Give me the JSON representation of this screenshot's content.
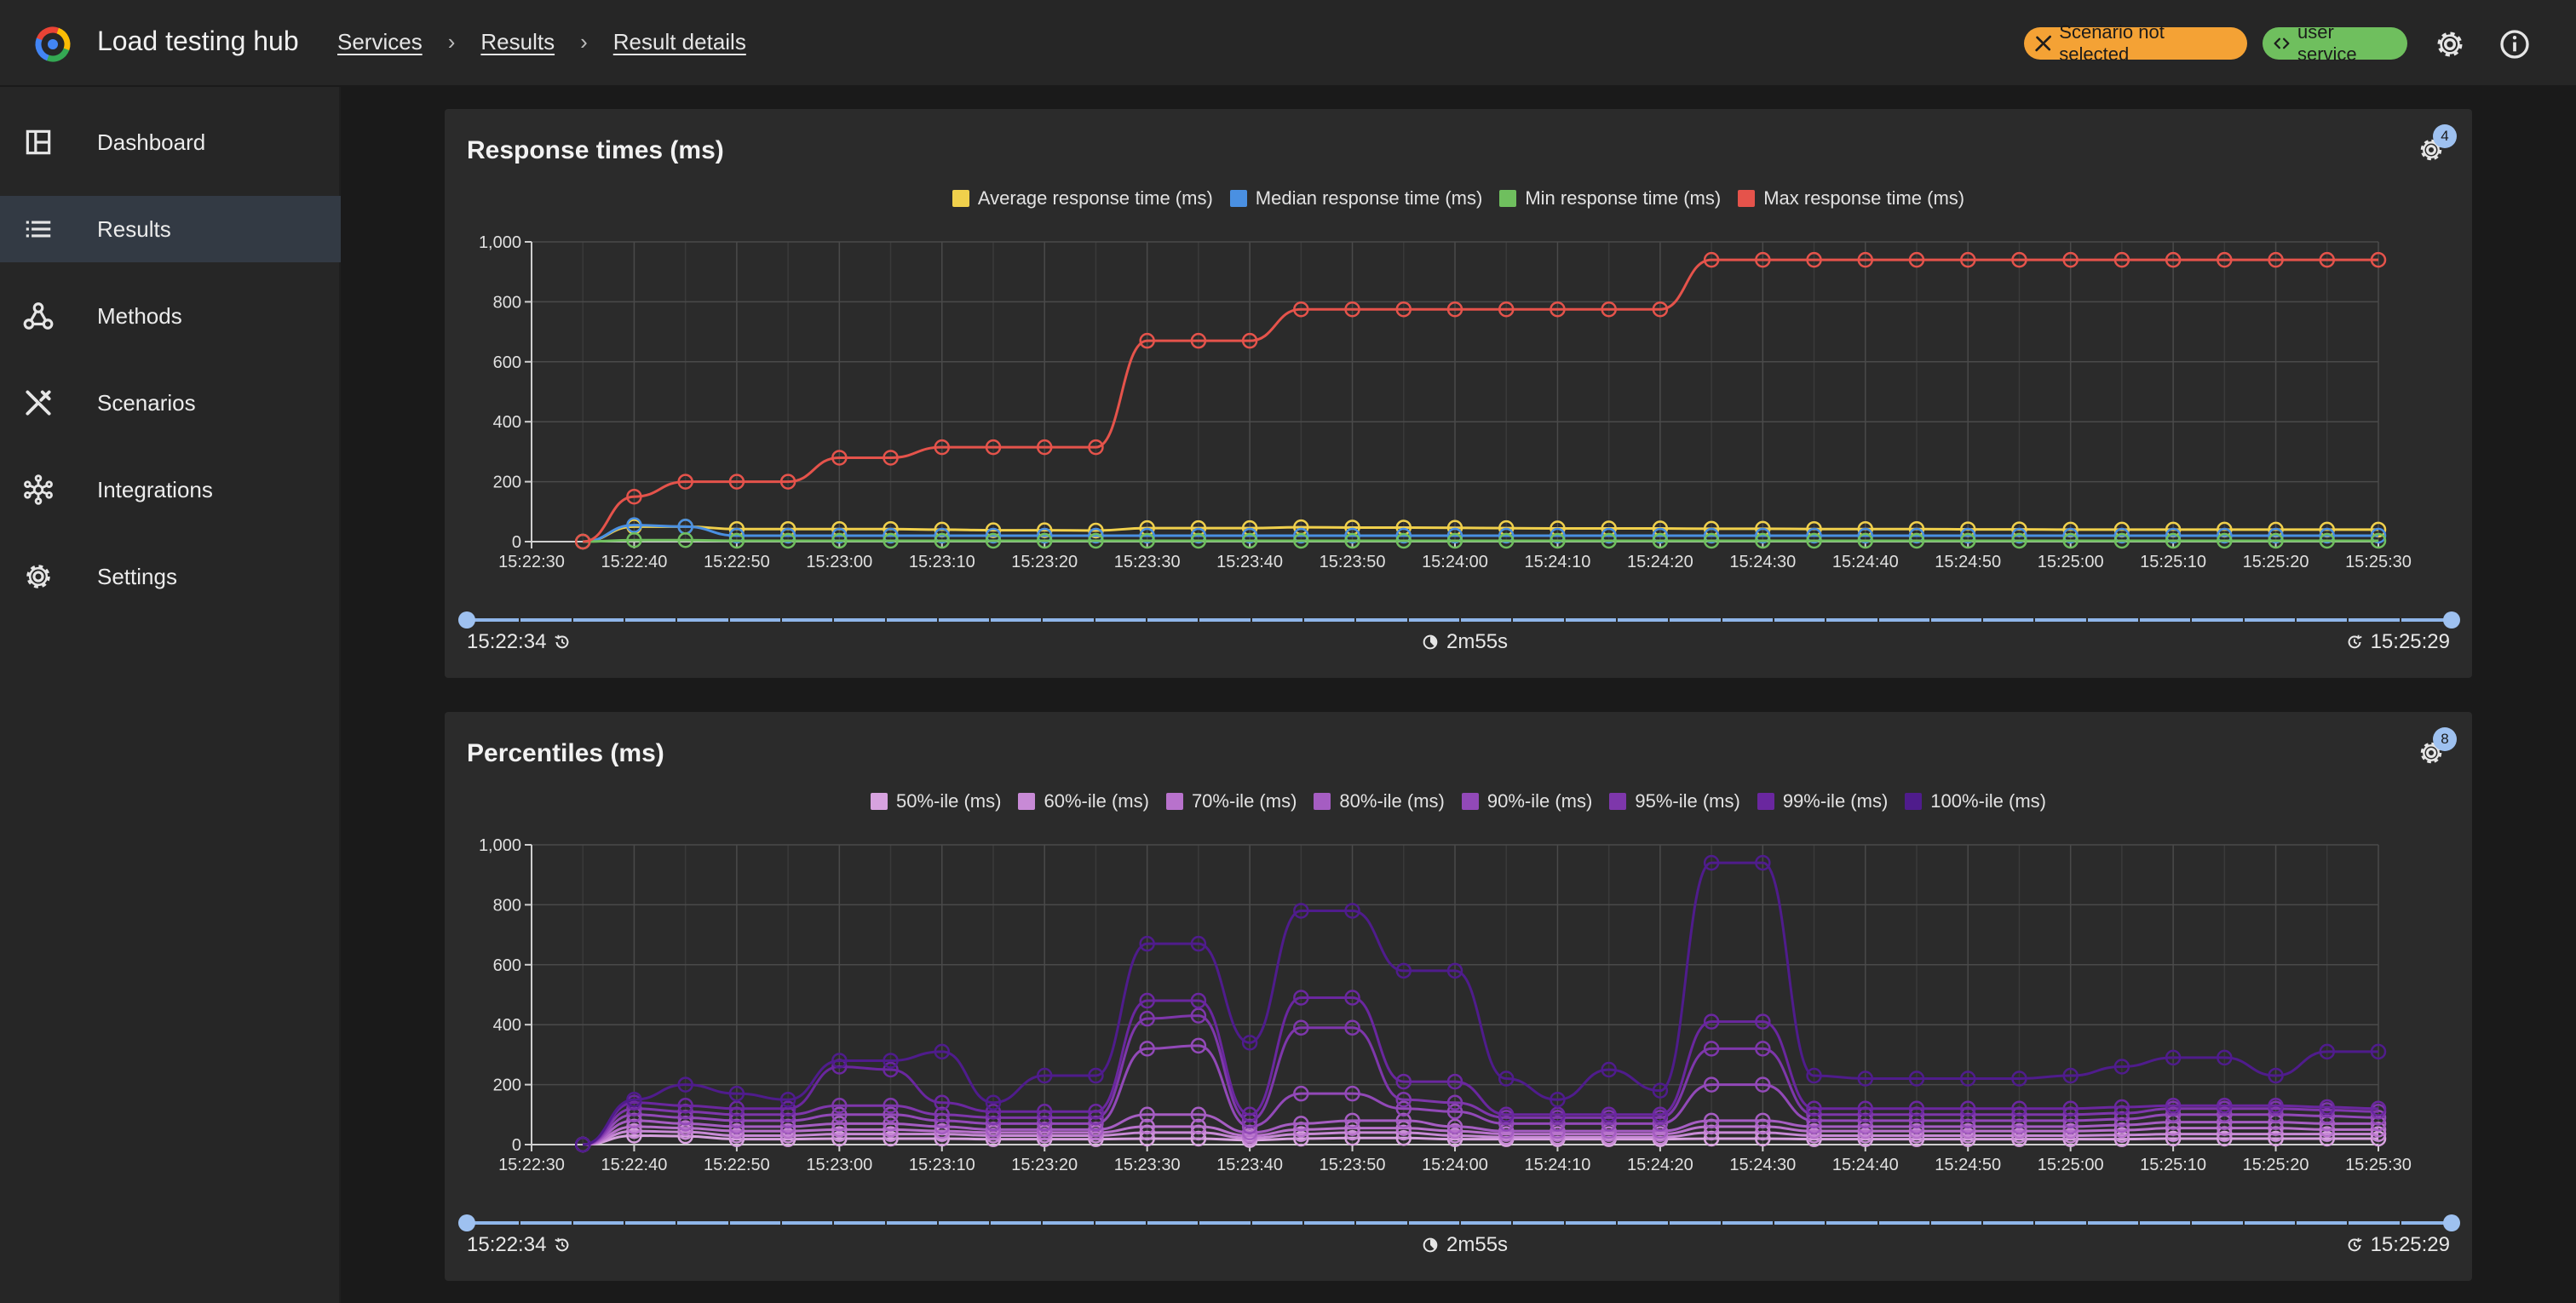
{
  "app": {
    "title": "Load testing hub"
  },
  "breadcrumbs": [
    {
      "label": "Services"
    },
    {
      "label": "Results"
    },
    {
      "label": "Result details"
    }
  ],
  "header": {
    "scenario_chip": "Scenario not selected",
    "service_chip": "user service",
    "scenario_chip_color": "#f4a235",
    "service_chip_color": "#6fbf5e",
    "icons": [
      "settings-icon",
      "info-icon"
    ]
  },
  "sidebar": {
    "items": [
      {
        "label": "Dashboard",
        "icon": "dashboard-icon",
        "active": false
      },
      {
        "label": "Results",
        "icon": "list-icon",
        "active": true
      },
      {
        "label": "Methods",
        "icon": "webhook-icon",
        "active": false
      },
      {
        "label": "Scenarios",
        "icon": "tools-icon",
        "active": false
      },
      {
        "label": "Integrations",
        "icon": "hub-icon",
        "active": false
      },
      {
        "label": "Settings",
        "icon": "gear-icon",
        "active": false
      }
    ]
  },
  "panels": [
    {
      "title": "Response times (ms)",
      "badge": "4",
      "footer": {
        "start": "15:22:34",
        "duration": "2m55s",
        "end": "15:25:29"
      }
    },
    {
      "title": "Percentiles (ms)",
      "badge": "8",
      "footer": {
        "start": "15:22:34",
        "duration": "2m55s",
        "end": "15:25:29"
      }
    }
  ],
  "chart_data": [
    {
      "type": "line",
      "title": "Response times (ms)",
      "xlabel": "",
      "ylabel": "",
      "ylim": [
        0,
        1000
      ],
      "yticks": [
        "0",
        "200",
        "400",
        "600",
        "800",
        "1,000"
      ],
      "xticks": [
        "15:22:30",
        "15:22:40",
        "15:22:50",
        "15:23:00",
        "15:23:10",
        "15:23:20",
        "15:23:30",
        "15:23:40",
        "15:23:50",
        "15:24:00",
        "15:24:10",
        "15:24:20",
        "15:24:30",
        "15:24:40",
        "15:24:50",
        "15:25:00",
        "15:25:10",
        "15:25:20",
        "15:25:30"
      ],
      "x": [
        "15:22:35",
        "15:22:40",
        "15:22:45",
        "15:22:50",
        "15:22:55",
        "15:23:00",
        "15:23:05",
        "15:23:10",
        "15:23:15",
        "15:23:20",
        "15:23:25",
        "15:23:30",
        "15:23:35",
        "15:23:40",
        "15:23:45",
        "15:23:50",
        "15:23:55",
        "15:24:00",
        "15:24:05",
        "15:24:10",
        "15:24:15",
        "15:24:20",
        "15:24:25",
        "15:24:30",
        "15:24:35",
        "15:24:40",
        "15:24:45",
        "15:24:50",
        "15:24:55",
        "15:25:00",
        "15:25:05",
        "15:25:10",
        "15:25:15",
        "15:25:20",
        "15:25:25",
        "15:25:30"
      ],
      "grid": true,
      "legend": "top-center",
      "series": [
        {
          "name": "Average response time (ms)",
          "color": "#f0d04c",
          "values": [
            0,
            50,
            50,
            42,
            42,
            42,
            42,
            40,
            38,
            38,
            37,
            45,
            45,
            45,
            48,
            47,
            47,
            46,
            45,
            44,
            44,
            44,
            43,
            43,
            42,
            42,
            42,
            41,
            41,
            40,
            40,
            40,
            40,
            40,
            40,
            40
          ]
        },
        {
          "name": "Median response time (ms)",
          "color": "#4a90e2",
          "values": [
            0,
            55,
            50,
            20,
            20,
            20,
            20,
            20,
            20,
            20,
            20,
            20,
            20,
            20,
            20,
            20,
            20,
            20,
            20,
            20,
            20,
            20,
            20,
            20,
            20,
            20,
            20,
            20,
            20,
            20,
            20,
            20,
            20,
            20,
            20,
            20
          ]
        },
        {
          "name": "Min response time (ms)",
          "color": "#6fbf5e",
          "values": [
            0,
            5,
            5,
            3,
            3,
            3,
            3,
            3,
            3,
            3,
            3,
            3,
            3,
            3,
            3,
            3,
            3,
            3,
            3,
            3,
            3,
            3,
            3,
            3,
            3,
            3,
            3,
            3,
            3,
            3,
            3,
            3,
            3,
            3,
            3,
            3
          ]
        },
        {
          "name": "Max response time (ms)",
          "color": "#e5534b",
          "values": [
            0,
            150,
            200,
            200,
            200,
            280,
            280,
            315,
            315,
            315,
            315,
            670,
            670,
            670,
            775,
            775,
            775,
            775,
            775,
            775,
            775,
            775,
            940,
            940,
            940,
            940,
            940,
            940,
            940,
            940,
            940,
            940,
            940,
            940,
            940,
            940
          ]
        }
      ]
    },
    {
      "type": "line",
      "title": "Percentiles (ms)",
      "xlabel": "",
      "ylabel": "",
      "ylim": [
        0,
        1000
      ],
      "yticks": [
        "0",
        "200",
        "400",
        "600",
        "800",
        "1,000"
      ],
      "xticks": [
        "15:22:30",
        "15:22:40",
        "15:22:50",
        "15:23:00",
        "15:23:10",
        "15:23:20",
        "15:23:30",
        "15:23:40",
        "15:23:50",
        "15:24:00",
        "15:24:10",
        "15:24:20",
        "15:24:30",
        "15:24:40",
        "15:24:50",
        "15:25:00",
        "15:25:10",
        "15:25:20",
        "15:25:30"
      ],
      "x": [
        "15:22:35",
        "15:22:40",
        "15:22:45",
        "15:22:50",
        "15:22:55",
        "15:23:00",
        "15:23:05",
        "15:23:10",
        "15:23:15",
        "15:23:20",
        "15:23:25",
        "15:23:30",
        "15:23:35",
        "15:23:40",
        "15:23:45",
        "15:23:50",
        "15:23:55",
        "15:24:00",
        "15:24:05",
        "15:24:10",
        "15:24:15",
        "15:24:20",
        "15:24:25",
        "15:24:30",
        "15:24:35",
        "15:24:40",
        "15:24:45",
        "15:24:50",
        "15:24:55",
        "15:25:00",
        "15:25:05",
        "15:25:10",
        "15:25:15",
        "15:25:20",
        "15:25:25",
        "15:25:30"
      ],
      "grid": true,
      "legend": "top-center",
      "series": [
        {
          "name": "50%-ile (ms)",
          "color": "#d7a2df",
          "values": [
            0,
            30,
            28,
            18,
            18,
            20,
            20,
            20,
            18,
            18,
            18,
            20,
            20,
            15,
            20,
            22,
            22,
            18,
            18,
            18,
            18,
            18,
            20,
            20,
            18,
            18,
            18,
            18,
            18,
            18,
            18,
            20,
            20,
            20,
            20,
            20
          ]
        },
        {
          "name": "60%-ile (ms)",
          "color": "#c88ad6",
          "values": [
            0,
            45,
            42,
            30,
            30,
            35,
            35,
            35,
            30,
            30,
            30,
            40,
            40,
            22,
            35,
            40,
            40,
            30,
            25,
            25,
            25,
            25,
            40,
            40,
            30,
            30,
            30,
            30,
            30,
            30,
            32,
            35,
            35,
            35,
            35,
            35
          ]
        },
        {
          "name": "70%-ile (ms)",
          "color": "#b872cc",
          "values": [
            0,
            60,
            55,
            45,
            45,
            50,
            50,
            45,
            40,
            40,
            40,
            60,
            60,
            30,
            50,
            55,
            55,
            45,
            35,
            35,
            35,
            35,
            60,
            60,
            45,
            45,
            45,
            45,
            45,
            45,
            48,
            55,
            55,
            55,
            50,
            50
          ]
        },
        {
          "name": "80%-ile (ms)",
          "color": "#a55dc2",
          "values": [
            0,
            80,
            70,
            60,
            60,
            70,
            70,
            60,
            50,
            50,
            50,
            100,
            100,
            40,
            70,
            80,
            80,
            60,
            45,
            45,
            45,
            45,
            80,
            80,
            60,
            60,
            60,
            60,
            60,
            60,
            65,
            75,
            75,
            75,
            70,
            70
          ]
        },
        {
          "name": "90%-ile (ms)",
          "color": "#9249b8",
          "values": [
            0,
            100,
            90,
            80,
            80,
            100,
            100,
            80,
            70,
            70,
            70,
            320,
            330,
            60,
            170,
            170,
            120,
            110,
            70,
            70,
            70,
            70,
            200,
            200,
            80,
            80,
            80,
            80,
            80,
            80,
            85,
            100,
            100,
            100,
            95,
            90
          ]
        },
        {
          "name": "95%-ile (ms)",
          "color": "#7e37ab",
          "values": [
            0,
            120,
            110,
            100,
            100,
            130,
            130,
            100,
            90,
            90,
            90,
            420,
            430,
            80,
            390,
            390,
            150,
            140,
            90,
            90,
            90,
            90,
            320,
            320,
            100,
            100,
            100,
            100,
            100,
            100,
            105,
            120,
            120,
            120,
            115,
            110
          ]
        },
        {
          "name": "99%-ile (ms)",
          "color": "#6a279f",
          "values": [
            0,
            140,
            130,
            120,
            120,
            260,
            250,
            140,
            110,
            110,
            110,
            480,
            480,
            100,
            490,
            490,
            210,
            210,
            100,
            100,
            100,
            100,
            410,
            410,
            120,
            120,
            120,
            120,
            120,
            120,
            125,
            130,
            130,
            130,
            125,
            120
          ]
        },
        {
          "name": "100%-ile (ms)",
          "color": "#4f1c8c",
          "values": [
            0,
            150,
            200,
            170,
            150,
            280,
            280,
            310,
            140,
            230,
            230,
            670,
            670,
            340,
            780,
            780,
            580,
            580,
            220,
            150,
            250,
            180,
            940,
            940,
            230,
            220,
            220,
            220,
            220,
            230,
            260,
            290,
            290,
            230,
            310,
            310
          ]
        }
      ]
    }
  ]
}
